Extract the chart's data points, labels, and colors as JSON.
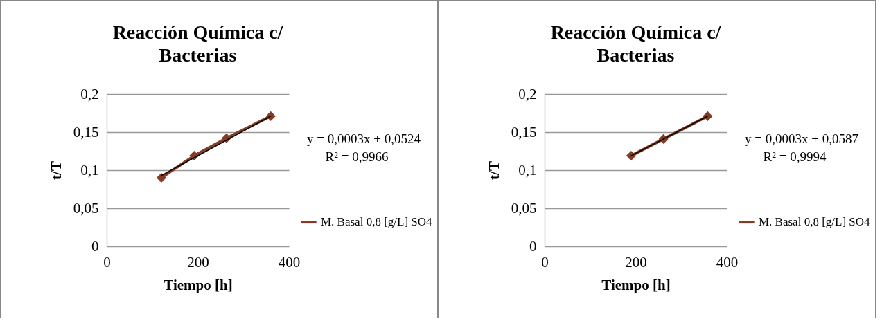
{
  "chart_data": [
    {
      "type": "line",
      "title": "Reacción Química c/ Bacterias",
      "xlabel": "Tiempo [h]",
      "ylabel": "t/T",
      "xlim": [
        0,
        400
      ],
      "xticks": [
        0,
        200,
        400
      ],
      "ylim": [
        0,
        0.2
      ],
      "yticks": [
        0,
        {
          "value": 0.05,
          "label": "0,05"
        },
        {
          "value": 0.1,
          "label": "0,1"
        },
        {
          "value": 0.15,
          "label": "0,15"
        },
        {
          "value": 0.2,
          "label": "0,2"
        }
      ],
      "grid": "y",
      "legend": "right",
      "marker": "diamond",
      "series": [
        {
          "name": "M. Basal 0,8 [g/L] SO4",
          "color": "#843c25",
          "x": [
            120,
            192,
            263,
            360
          ],
          "values": [
            0.09,
            0.119,
            0.142,
            0.171
          ]
        },
        {
          "type": "line",
          "color": "#000000",
          "marker": "none",
          "x": [
            120,
            360
          ],
          "values": [
            0.093,
            0.171
          ]
        }
      ],
      "annotations": [
        "y = 0,0003x + 0,0524",
        "R² = 0,9966"
      ]
    },
    {
      "type": "line",
      "title": "Reacción Química c/ Bacterias",
      "xlabel": "Tiempo [h]",
      "ylabel": "t/T",
      "xlim": [
        0,
        400
      ],
      "xticks": [
        0,
        200,
        400
      ],
      "ylim": [
        0,
        0.2
      ],
      "yticks": [
        0,
        {
          "value": 0.05,
          "label": "0,05"
        },
        {
          "value": 0.1,
          "label": "0,1"
        },
        {
          "value": 0.15,
          "label": "0,15"
        },
        {
          "value": 0.2,
          "label": "0,2"
        }
      ],
      "grid": "y",
      "legend": "right",
      "marker": "diamond",
      "series": [
        {
          "name": "M. Basal 0,8 [g/L] SO4",
          "color": "#843c25",
          "x": [
            190,
            261,
            358
          ],
          "values": [
            0.119,
            0.141,
            0.171
          ]
        },
        {
          "type": "line",
          "color": "#000000",
          "marker": "none",
          "x": [
            190,
            358
          ],
          "values": [
            0.119,
            0.171
          ]
        }
      ],
      "annotations": [
        "y = 0,0003x + 0,0587",
        "R² = 0,9994"
      ]
    }
  ]
}
